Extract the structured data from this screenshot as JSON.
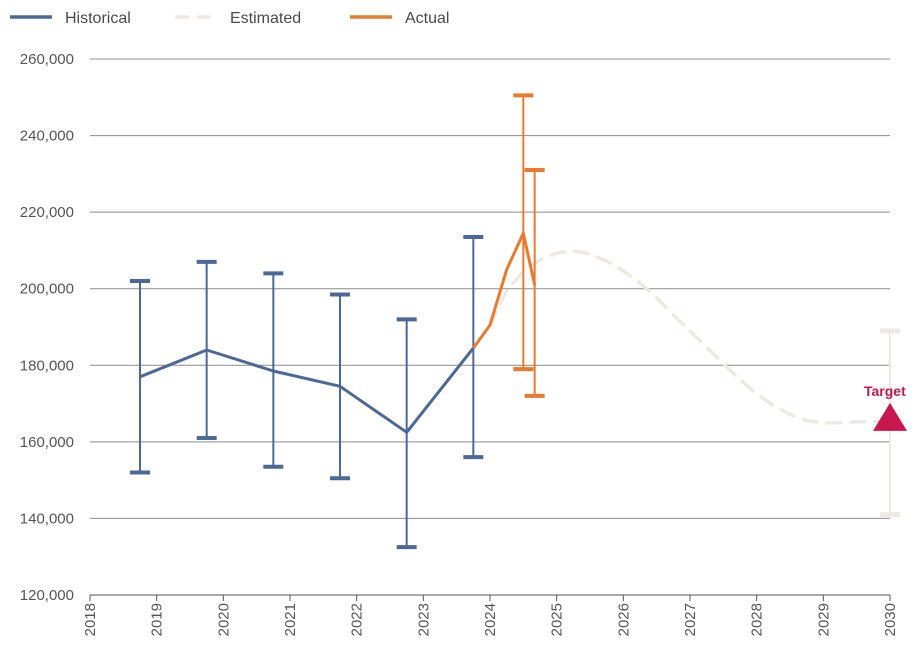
{
  "chart_data": {
    "type": "line",
    "title": "",
    "xlabel": "",
    "ylabel": "",
    "x_range": [
      2018,
      2030
    ],
    "ylim": [
      120000,
      260000
    ],
    "y_ticks": [
      120000,
      140000,
      160000,
      180000,
      200000,
      220000,
      240000,
      260000
    ],
    "y_tick_labels": [
      "120,000",
      "140,000",
      "160,000",
      "180,000",
      "200,000",
      "220,000",
      "240,000",
      "260,000"
    ],
    "x_ticks": [
      2018,
      2019,
      2020,
      2021,
      2022,
      2023,
      2024,
      2025,
      2026,
      2027,
      2028,
      2029,
      2030
    ],
    "x_tick_labels": [
      "2018",
      "2019",
      "2020",
      "2021",
      "2022",
      "2023",
      "2024",
      "2025",
      "2026",
      "2027",
      "2028",
      "2029",
      "2030"
    ],
    "grid": "horizontal",
    "legend_position": "top-left",
    "series": [
      {
        "name": "Historical",
        "color": "#4a6898",
        "style": "solid",
        "x": [
          2018.75,
          2019.75,
          2020.75,
          2021.75,
          2022.75,
          2023.75
        ],
        "values": [
          177000,
          184000,
          178500,
          174500,
          162500,
          184500
        ],
        "error_low": [
          152000,
          161000,
          153500,
          150500,
          132500,
          156000
        ],
        "error_high": [
          202000,
          207000,
          204000,
          198500,
          192000,
          213500
        ]
      },
      {
        "name": "Estimated",
        "color": "#ede9e2",
        "style": "dashed",
        "x": [
          2024.0,
          2024.25,
          2024.5,
          2024.75,
          2025.0,
          2025.25,
          2025.5,
          2025.75,
          2026.0,
          2026.25,
          2026.5,
          2026.75,
          2027.0,
          2027.25,
          2027.5,
          2027.75,
          2028.0,
          2028.25,
          2028.5,
          2028.75,
          2029.0,
          2029.25,
          2029.5,
          2029.75,
          2030.0
        ],
        "values": [
          190500,
          199500,
          204500,
          207500,
          209300,
          209900,
          209100,
          207200,
          204700,
          201500,
          197600,
          193200,
          188900,
          184700,
          180400,
          176300,
          172500,
          169500,
          167200,
          165600,
          164900,
          165000,
          165200,
          165300,
          165400
        ],
        "error_bar": {
          "x": 2030,
          "low": 141000,
          "high": 189000
        }
      },
      {
        "name": "Actual",
        "color": "#ec7a2e",
        "style": "solid",
        "x": [
          2023.75,
          2024.0,
          2024.25,
          2024.5,
          2024.67
        ],
        "values": [
          184500,
          190500,
          205000,
          214500,
          201000
        ],
        "error_bars": [
          {
            "x": 2024.5,
            "low": 179000,
            "high": 250500
          },
          {
            "x": 2024.67,
            "low": 172000,
            "high": 231000
          }
        ]
      }
    ],
    "annotations": [
      {
        "text": "Target",
        "x": 2030,
        "y": 166000,
        "marker": "triangle",
        "color": "#c8174d"
      }
    ]
  }
}
